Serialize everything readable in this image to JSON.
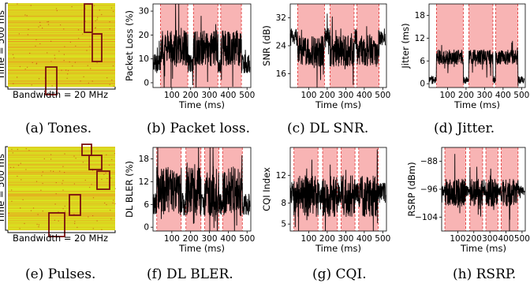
{
  "chart_data": [
    {
      "id": "a",
      "type": "heatmap",
      "caption": "(a) Tones.",
      "ylabel": "Time = 500 ms",
      "xlabel": "Bandwidth = 20 MHz",
      "highlights": [
        "tone-1",
        "tone-2",
        "tone-3"
      ]
    },
    {
      "id": "b",
      "type": "line",
      "caption": "(b) Packet loss.",
      "xlabel": "Time (ms)",
      "ylabel": "Packet Loss (%)",
      "xlim": [
        0,
        520
      ],
      "ylim": [
        -2,
        33
      ],
      "xticks": [
        100,
        200,
        300,
        400,
        500
      ],
      "yticks": [
        0,
        10,
        20,
        30
      ],
      "shaded": [
        [
          40,
          185
        ],
        [
          215,
          345
        ],
        [
          360,
          470
        ]
      ],
      "baseline": [
        4,
        12
      ],
      "active": [
        7,
        22
      ],
      "series": [
        {
          "x_range": [
            0,
            515
          ],
          "color": "#000000"
        }
      ]
    },
    {
      "id": "c",
      "type": "line",
      "caption": "(c) DL SNR.",
      "xlabel": "Time (ms)",
      "ylabel": "SNR (dB)",
      "xlim": [
        0,
        520
      ],
      "ylim": [
        12,
        36
      ],
      "xticks": [
        100,
        200,
        300,
        400,
        500
      ],
      "yticks": [
        16,
        24,
        32
      ],
      "shaded": [
        [
          40,
          185
        ],
        [
          215,
          345
        ],
        [
          360,
          480
        ]
      ],
      "baseline": [
        24,
        29
      ],
      "active": [
        18,
        27
      ],
      "series": [
        {
          "x_range": [
            0,
            515
          ],
          "color": "#000000"
        }
      ]
    },
    {
      "id": "d",
      "type": "line",
      "caption": "(d) Jitter.",
      "xlabel": "Time (ms)",
      "ylabel": "Jitter (ms)",
      "xlim": [
        0,
        520
      ],
      "ylim": [
        -1,
        21
      ],
      "xticks": [
        100,
        200,
        300,
        400,
        500
      ],
      "yticks": [
        0,
        6,
        12,
        18
      ],
      "shaded": [
        [
          40,
          185
        ],
        [
          215,
          345
        ],
        [
          360,
          480
        ]
      ],
      "baseline": [
        0,
        2
      ],
      "active": [
        5,
        9
      ],
      "series": [
        {
          "x_range": [
            0,
            515
          ],
          "color": "#000000"
        }
      ]
    },
    {
      "id": "e",
      "type": "heatmap",
      "caption": "(e) Pulses.",
      "ylabel": "Time = 500 ms",
      "xlabel": "Bandwidth = 20 MHz",
      "highlights": [
        "pulse-1",
        "pulse-2",
        "pulse-3",
        "pulse-4",
        "pulse-5"
      ]
    },
    {
      "id": "f",
      "type": "line",
      "caption": "(f) DL BLER.",
      "xlabel": "Time (ms)",
      "ylabel": "DL BLER (%)",
      "xlim": [
        0,
        520
      ],
      "ylim": [
        -1,
        21
      ],
      "xticks": [
        100,
        200,
        300,
        400,
        500
      ],
      "yticks": [
        0,
        6,
        12,
        18
      ],
      "shaded": [
        [
          20,
          150
        ],
        [
          175,
          255
        ],
        [
          275,
          350
        ],
        [
          370,
          475
        ]
      ],
      "baseline": [
        3,
        9
      ],
      "active": [
        3,
        16
      ],
      "series": [
        {
          "x_range": [
            0,
            515
          ],
          "color": "#000000"
        }
      ]
    },
    {
      "id": "g",
      "type": "line",
      "caption": "(g) CQI.",
      "xlabel": "Time (ms)",
      "ylabel": "CQI Index",
      "xlim": [
        0,
        520
      ],
      "ylim": [
        4,
        16
      ],
      "xticks": [
        100,
        200,
        300,
        400,
        500
      ],
      "yticks": [
        5,
        8,
        12
      ],
      "shaded": [
        [
          20,
          150
        ],
        [
          175,
          255
        ],
        [
          275,
          350
        ],
        [
          370,
          475
        ]
      ],
      "baseline": [
        8,
        11
      ],
      "active": [
        6,
        12
      ],
      "series": [
        {
          "x_range": [
            0,
            515
          ],
          "color": "#000000"
        }
      ]
    },
    {
      "id": "h",
      "type": "line",
      "caption": "(h) RSRP.",
      "xlabel": "Time (ms)",
      "ylabel": "RSRP (dBm)",
      "xlim": [
        0,
        520
      ],
      "ylim": [
        -108,
        -84
      ],
      "xticks": [
        100,
        200,
        300,
        400,
        500
      ],
      "yticks": [
        -104,
        -96,
        -88
      ],
      "shaded": [
        [
          20,
          150
        ],
        [
          175,
          255
        ],
        [
          275,
          350
        ],
        [
          370,
          475
        ]
      ],
      "baseline": [
        -98,
        -95
      ],
      "active": [
        -101,
        -93
      ],
      "series": [
        {
          "x_range": [
            0,
            515
          ],
          "color": "#000000"
        }
      ]
    }
  ],
  "colors": {
    "shade": "#f8b4b4",
    "shade_edge": "#e03030",
    "line": "#000000",
    "spec_bg": "#d7f020",
    "spec_stripe": "#ee7a20",
    "spec_box": "#7a1010"
  }
}
